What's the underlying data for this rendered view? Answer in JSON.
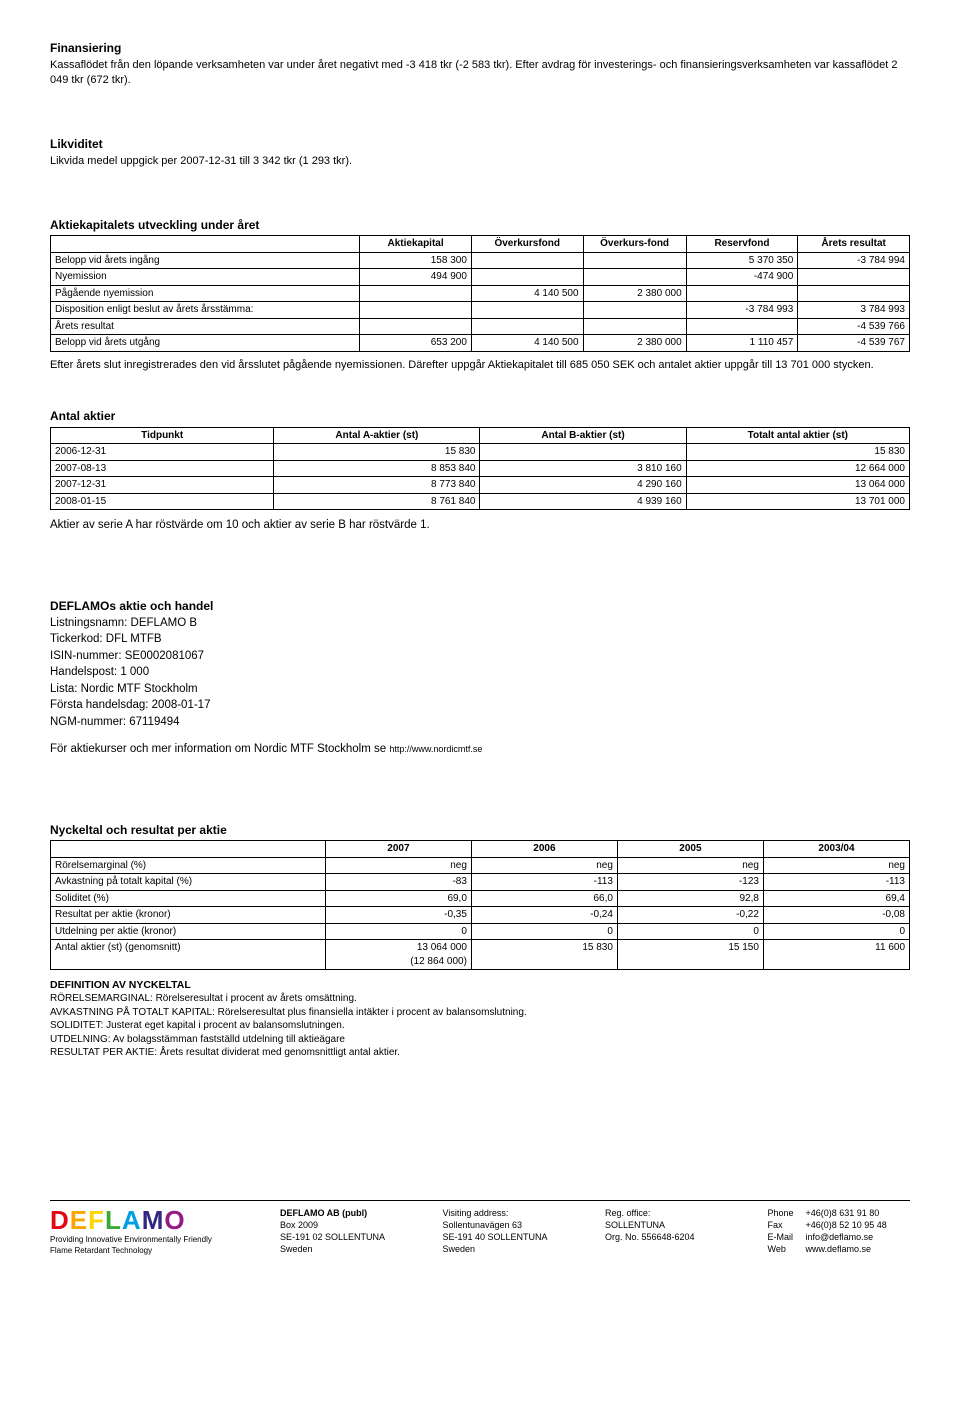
{
  "finansiering": {
    "title": "Finansiering",
    "text": "Kassaflödet från den löpande verksamheten var under året negativt med -3 418 tkr (-2 583 tkr). Efter avdrag för investerings- och finansieringsverksamheten var kassaflödet 2 049 tkr (672 tkr)."
  },
  "likviditet": {
    "title": "Likviditet",
    "text": "Likvida medel uppgick per 2007-12-31 till 3 342 tkr (1 293 tkr)."
  },
  "aktiekapital": {
    "title": "Aktiekapitalets utveckling under året",
    "headers": [
      "",
      "Aktiekapital",
      "Överkursfond",
      "Överkurs-fond",
      "Reservfond",
      "Årets resultat"
    ],
    "rows": [
      {
        "label": "Belopp vid årets ingång",
        "vals": [
          "158 300",
          "",
          "",
          "5 370 350",
          "-3 784 994"
        ]
      },
      {
        "label": "Nyemission",
        "vals": [
          "494 900",
          "",
          "",
          "-474 900",
          ""
        ]
      },
      {
        "label": "Pågående nyemission",
        "vals": [
          "",
          "4 140 500",
          "2 380 000",
          "",
          ""
        ]
      },
      {
        "label": "Disposition enligt beslut av årets årsstämma:",
        "vals": [
          "",
          "",
          "",
          "-3 784 993",
          "3 784 993"
        ]
      },
      {
        "label": "Årets resultat",
        "vals": [
          "",
          "",
          "",
          "",
          "-4 539 766"
        ]
      },
      {
        "label": "Belopp vid årets utgång",
        "vals": [
          "653 200",
          "4 140 500",
          "2 380 000",
          "1 110 457",
          "-4 539 767"
        ]
      }
    ],
    "after_text": "Efter årets slut inregistrerades den vid årsslutet pågående nyemissionen. Därefter uppgår Aktiekapitalet till 685 050 SEK och antalet aktier uppgår till 13 701 000 stycken."
  },
  "antal_aktier": {
    "title": "Antal aktier",
    "headers": [
      "Tidpunkt",
      "Antal A-aktier (st)",
      "Antal B-aktier (st)",
      "Totalt antal aktier (st)"
    ],
    "rows": [
      [
        "2006-12-31",
        "15 830",
        "",
        "15 830"
      ],
      [
        "2007-08-13",
        "8 853 840",
        "3 810 160",
        "12 664 000"
      ],
      [
        "2007-12-31",
        "8 773 840",
        "4 290 160",
        "13 064 000"
      ],
      [
        "2008-01-15",
        "8 761 840",
        "4 939 160",
        "13 701 000"
      ]
    ],
    "after_text": "Aktier av serie A har röstvärde om 10 och aktier av serie B har röstvärde 1."
  },
  "aktie_handel": {
    "title": "DEFLAMOs aktie och handel",
    "items": [
      "Listningsnamn: DEFLAMO B",
      "Tickerkod: DFL MTFB",
      "ISIN-nummer: SE0002081067",
      "Handelspost: 1 000",
      "Lista: Nordic MTF Stockholm",
      "Första handelsdag: 2008-01-17",
      "NGM-nummer: 67119494"
    ],
    "info_text": "För aktiekurser och mer information om Nordic MTF Stockholm se ",
    "info_link": "http://www.nordicmtf.se"
  },
  "nyckeltal": {
    "title": "Nyckeltal och resultat per aktie",
    "headers": [
      "",
      "2007",
      "2006",
      "2005",
      "2003/04"
    ],
    "rows": [
      [
        "Rörelsemarginal (%)",
        "neg",
        "neg",
        "neg",
        "neg"
      ],
      [
        "Avkastning på totalt kapital (%)",
        "-83",
        "-113",
        "-123",
        "-113"
      ],
      [
        "Soliditet (%)",
        "69,0",
        "66,0",
        "92,8",
        "69,4"
      ],
      [
        "Resultat per aktie (kronor)",
        "-0,35",
        "-0,24",
        "-0,22",
        "-0,08"
      ],
      [
        "Utdelning per aktie (kronor)",
        "0",
        "0",
        "0",
        "0"
      ],
      [
        "Antal aktier (st) (genomsnitt)",
        "13 064 000\n(12 864 000)",
        "15 830",
        "15 150",
        "11 600"
      ]
    ]
  },
  "definitions": {
    "title": "DEFINITION AV NYCKELTAL",
    "items": [
      "RÖRELSEMARGINAL: Rörelseresultat i procent av årets omsättning.",
      "AVKASTNING PÅ TOTALT KAPITAL: Rörelseresultat plus finansiella intäkter i procent av balansomslutning.",
      "SOLIDITET: Justerat eget kapital i procent av balansomslutningen.",
      "UTDELNING: Av bolagsstämman fastställd utdelning till aktieägare",
      "RESULTAT PER AKTIE: Årets resultat dividerat med genomsnittligt antal aktier."
    ]
  },
  "footer": {
    "logo": "DEFLAMO",
    "tagline1": "Providing Innovative Environmentally Friendly",
    "tagline2": "Flame Retardant Technology",
    "col1": [
      "DEFLAMO AB (publ)",
      "Box 2009",
      "SE-191 02 SOLLENTUNA",
      "Sweden"
    ],
    "col2": [
      "Visiting address:",
      "Sollentunavägen 63",
      "SE-191 40 SOLLENTUNA",
      "Sweden"
    ],
    "col3": [
      "Reg. office:",
      "SOLLENTUNA",
      "Org. No. 556648-6204"
    ],
    "col4": [
      [
        "Phone",
        "+46(0)8 631 91 80"
      ],
      [
        "Fax",
        "+46(0)8 52 10 95 48"
      ],
      [
        "E-Mail",
        "info@deflamo.se"
      ],
      [
        "Web",
        "www.deflamo.se"
      ]
    ]
  }
}
